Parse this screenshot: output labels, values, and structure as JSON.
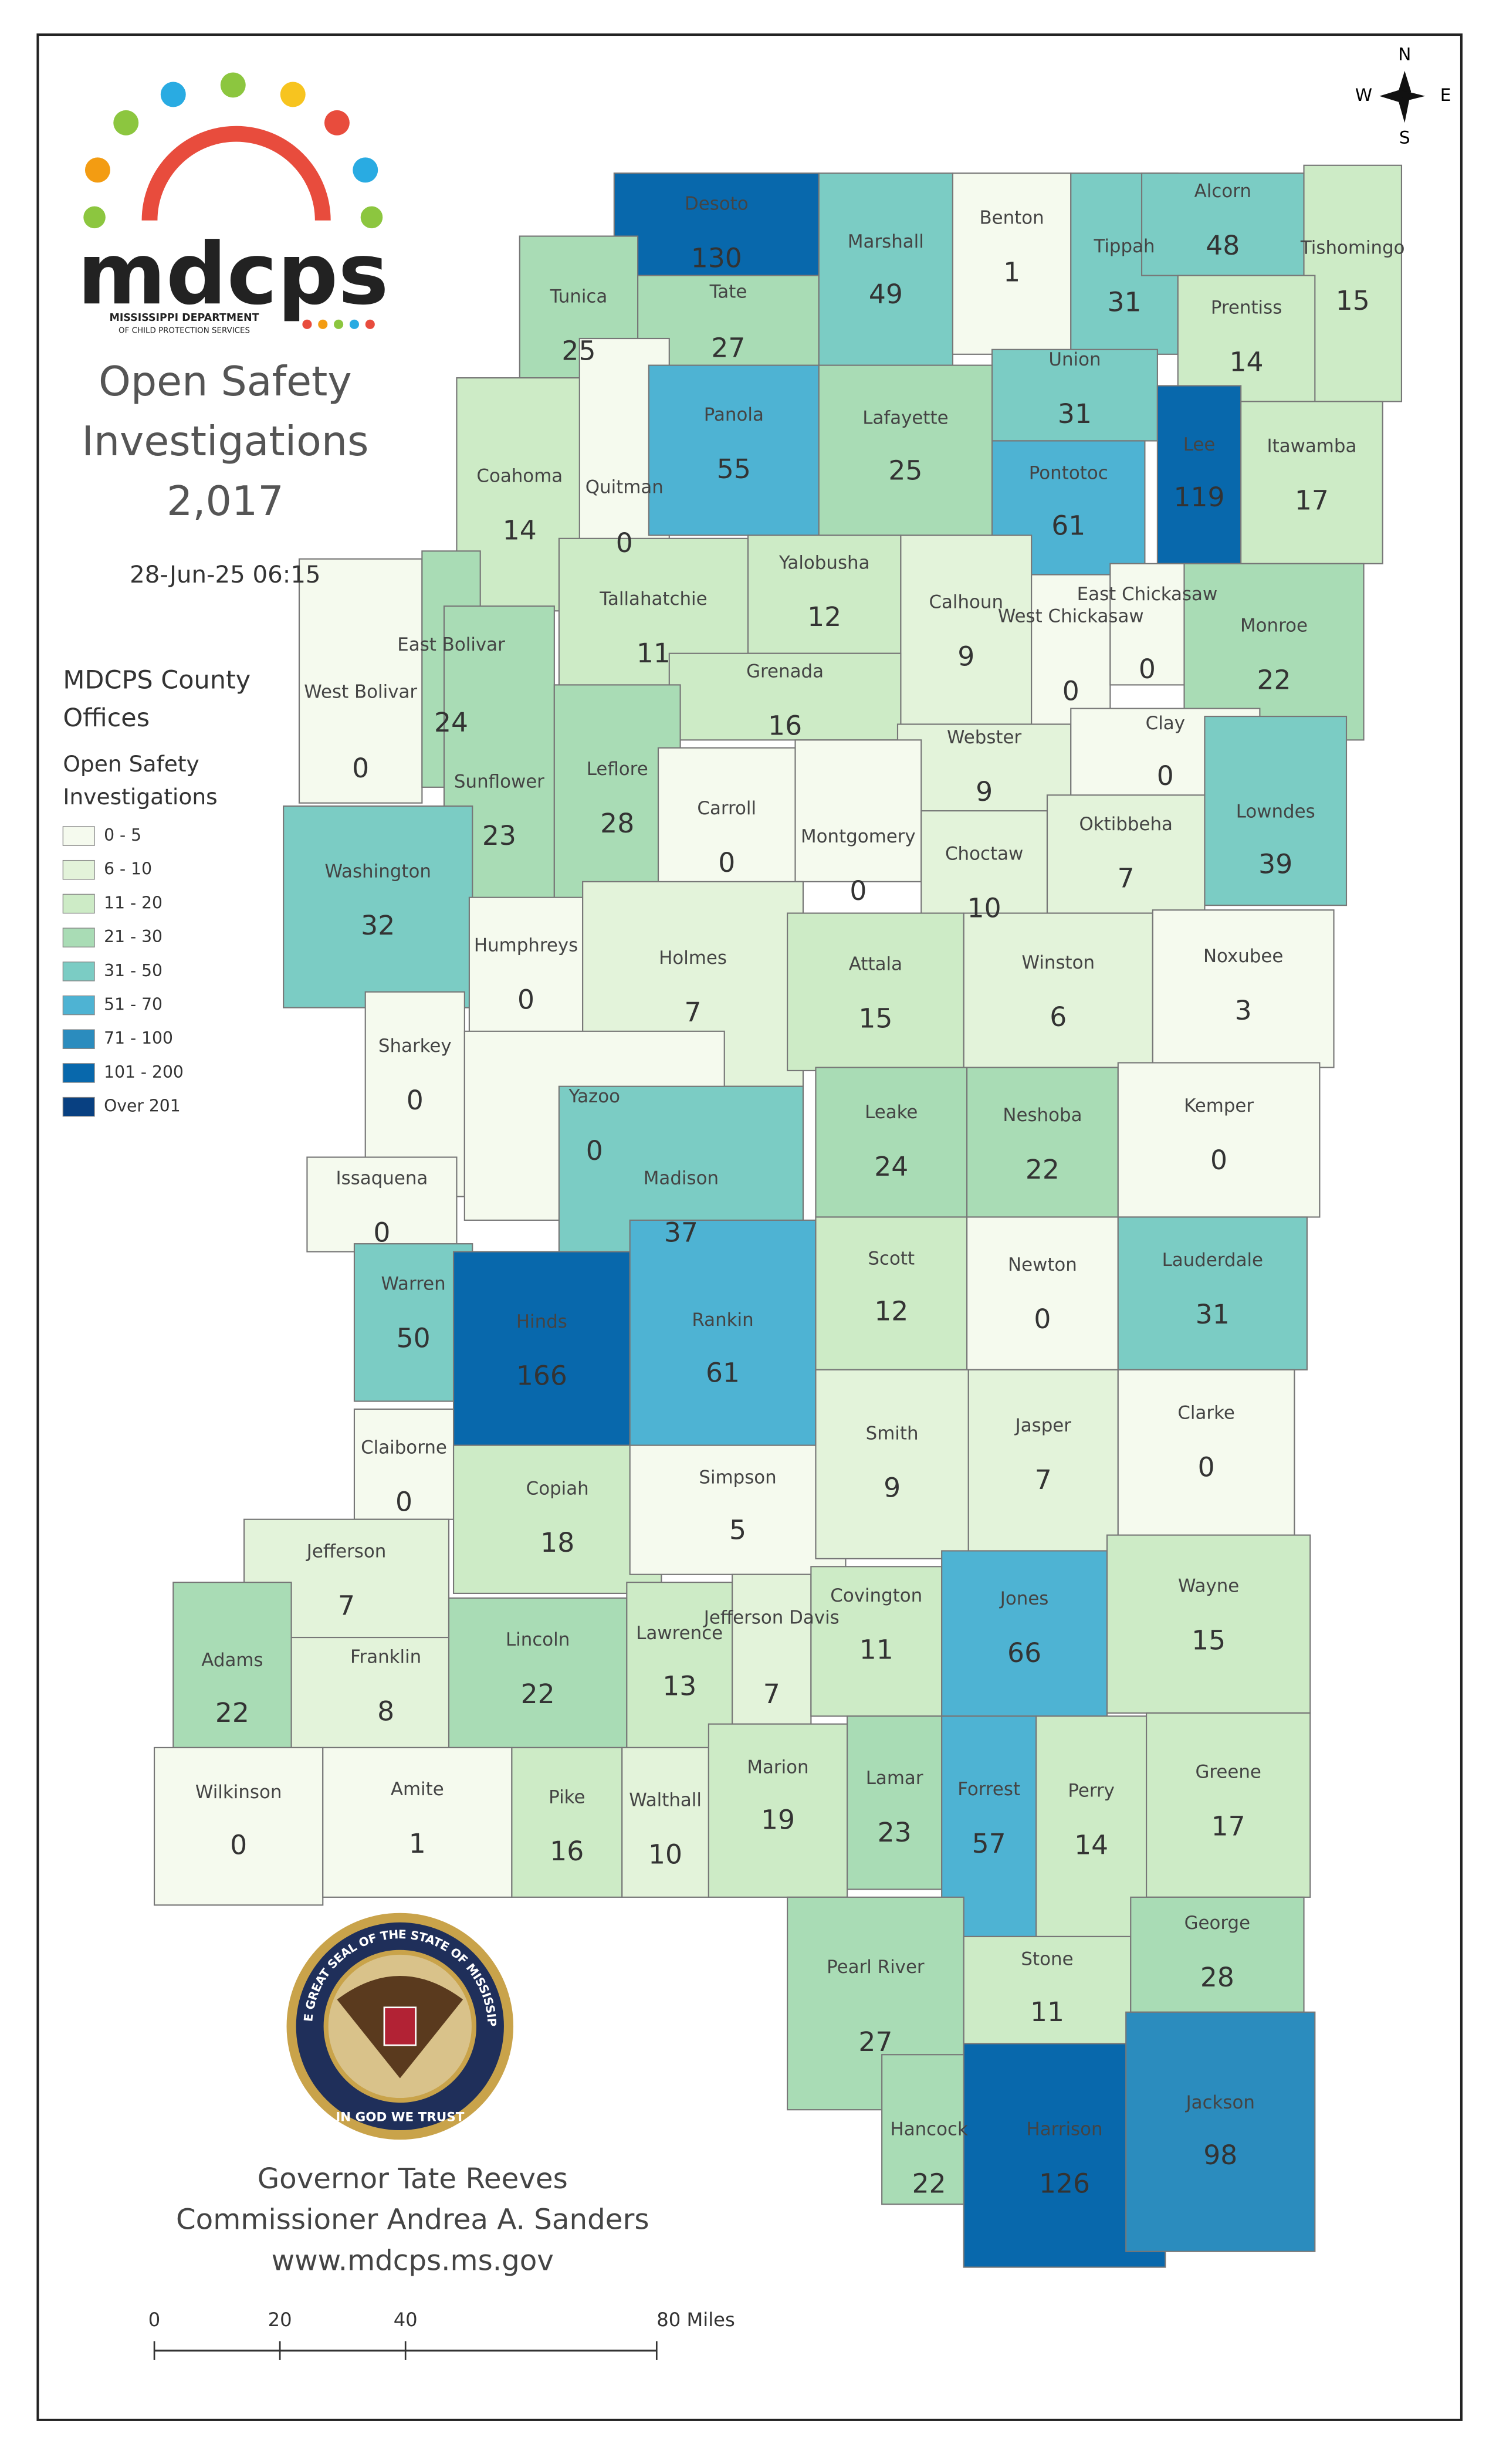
{
  "header": {
    "logo": {
      "text": "mdcps",
      "line1": "MISSISSIPPI DEPARTMENT",
      "line2": "OF CHILD PROTECTION SERVICES"
    },
    "title": [
      "Open Safety",
      "Investigations",
      "2,017"
    ],
    "timestamp": "28-Jun-25 06:15"
  },
  "legend": {
    "heading": [
      "MDCPS County",
      "Offices"
    ],
    "subheading": [
      "Open Safety",
      "Investigations"
    ],
    "classes": [
      {
        "label": "0 - 5",
        "color": "#f5faee"
      },
      {
        "label": "6 - 10",
        "color": "#e3f3da"
      },
      {
        "label": "11 - 20",
        "color": "#cdebc6"
      },
      {
        "label": "21 - 30",
        "color": "#a9dcb5"
      },
      {
        "label": "31 - 50",
        "color": "#7bccc4"
      },
      {
        "label": "51 - 70",
        "color": "#4eb3d3"
      },
      {
        "label": "71 - 100",
        "color": "#2b8cbe"
      },
      {
        "label": "101 - 200",
        "color": "#0868ac"
      },
      {
        "label": "Over 201",
        "color": "#084081"
      }
    ]
  },
  "compass": {
    "n": "N",
    "s": "S",
    "e": "E",
    "w": "W"
  },
  "counties": [
    {
      "name": "Desoto",
      "value": 130
    },
    {
      "name": "Tunica",
      "value": 25
    },
    {
      "name": "Tate",
      "value": 27
    },
    {
      "name": "Marshall",
      "value": 49
    },
    {
      "name": "Benton",
      "value": 1
    },
    {
      "name": "Tippah",
      "value": 31
    },
    {
      "name": "Alcorn",
      "value": 48
    },
    {
      "name": "Tishomingo",
      "value": 15
    },
    {
      "name": "Prentiss",
      "value": 14
    },
    {
      "name": "Union",
      "value": 31
    },
    {
      "name": "Lee",
      "value": 119
    },
    {
      "name": "Itawamba",
      "value": 17
    },
    {
      "name": "Coahoma",
      "value": 14
    },
    {
      "name": "Quitman",
      "value": 0
    },
    {
      "name": "Panola",
      "value": 55
    },
    {
      "name": "Lafayette",
      "value": 25
    },
    {
      "name": "Pontotoc",
      "value": 61
    },
    {
      "name": "West Bolivar",
      "value": 0
    },
    {
      "name": "East Bolivar",
      "value": 24
    },
    {
      "name": "Tallahatchie",
      "value": 11
    },
    {
      "name": "Yalobusha",
      "value": 12
    },
    {
      "name": "Calhoun",
      "value": 9
    },
    {
      "name": "West Chickasaw",
      "value": 0
    },
    {
      "name": "East Chickasaw",
      "value": 0
    },
    {
      "name": "Monroe",
      "value": 22
    },
    {
      "name": "Grenada",
      "value": 16
    },
    {
      "name": "Sunflower",
      "value": 23
    },
    {
      "name": "Leflore",
      "value": 28
    },
    {
      "name": "Webster",
      "value": 9
    },
    {
      "name": "Clay",
      "value": 0
    },
    {
      "name": "Carroll",
      "value": 0
    },
    {
      "name": "Montgomery",
      "value": 0
    },
    {
      "name": "Lowndes",
      "value": 39
    },
    {
      "name": "Washington",
      "value": 32
    },
    {
      "name": "Humphreys",
      "value": 0
    },
    {
      "name": "Choctaw",
      "value": 10
    },
    {
      "name": "Oktibbeha",
      "value": 7
    },
    {
      "name": "Holmes",
      "value": 7
    },
    {
      "name": "Attala",
      "value": 15
    },
    {
      "name": "Winston",
      "value": 6
    },
    {
      "name": "Noxubee",
      "value": 3
    },
    {
      "name": "Sharkey",
      "value": 0
    },
    {
      "name": "Yazoo",
      "value": 0
    },
    {
      "name": "Leake",
      "value": 24
    },
    {
      "name": "Neshoba",
      "value": 22
    },
    {
      "name": "Kemper",
      "value": 0
    },
    {
      "name": "Issaquena",
      "value": 0
    },
    {
      "name": "Madison",
      "value": 37
    },
    {
      "name": "Warren",
      "value": 50
    },
    {
      "name": "Hinds",
      "value": 166
    },
    {
      "name": "Rankin",
      "value": 61
    },
    {
      "name": "Scott",
      "value": 12
    },
    {
      "name": "Newton",
      "value": 0
    },
    {
      "name": "Lauderdale",
      "value": 31
    },
    {
      "name": "Claiborne",
      "value": 0
    },
    {
      "name": "Copiah",
      "value": 18
    },
    {
      "name": "Simpson",
      "value": 5
    },
    {
      "name": "Smith",
      "value": 9
    },
    {
      "name": "Jasper",
      "value": 7
    },
    {
      "name": "Clarke",
      "value": 0
    },
    {
      "name": "Jefferson",
      "value": 7
    },
    {
      "name": "Adams",
      "value": 22
    },
    {
      "name": "Franklin",
      "value": 8
    },
    {
      "name": "Lincoln",
      "value": 22
    },
    {
      "name": "Lawrence",
      "value": 13
    },
    {
      "name": "Jefferson Davis",
      "value": 7
    },
    {
      "name": "Covington",
      "value": 11
    },
    {
      "name": "Jones",
      "value": 66
    },
    {
      "name": "Wayne",
      "value": 15
    },
    {
      "name": "Wilkinson",
      "value": 0
    },
    {
      "name": "Amite",
      "value": 1
    },
    {
      "name": "Pike",
      "value": 16
    },
    {
      "name": "Walthall",
      "value": 10
    },
    {
      "name": "Marion",
      "value": 19
    },
    {
      "name": "Lamar",
      "value": 23
    },
    {
      "name": "Forrest",
      "value": 57
    },
    {
      "name": "Perry",
      "value": 14
    },
    {
      "name": "Greene",
      "value": 17
    },
    {
      "name": "Pearl River",
      "value": 27
    },
    {
      "name": "Stone",
      "value": 11
    },
    {
      "name": "George",
      "value": 28
    },
    {
      "name": "Hancock",
      "value": 22
    },
    {
      "name": "Harrison",
      "value": 126
    },
    {
      "name": "Jackson",
      "value": 98
    }
  ],
  "seal": {
    "ring": "THE GREAT SEAL OF THE STATE OF MISSISSIPPI",
    "motto": "IN GOD WE TRUST"
  },
  "footer": [
    "Governor Tate Reeves",
    "Commissioner Andrea A. Sanders",
    "www.mdcps.ms.gov"
  ],
  "scale": {
    "xlim": [
      0,
      80
    ],
    "xticks": [
      0,
      20,
      40,
      {
        "value": 80,
        "label": "80 Miles"
      }
    ]
  }
}
